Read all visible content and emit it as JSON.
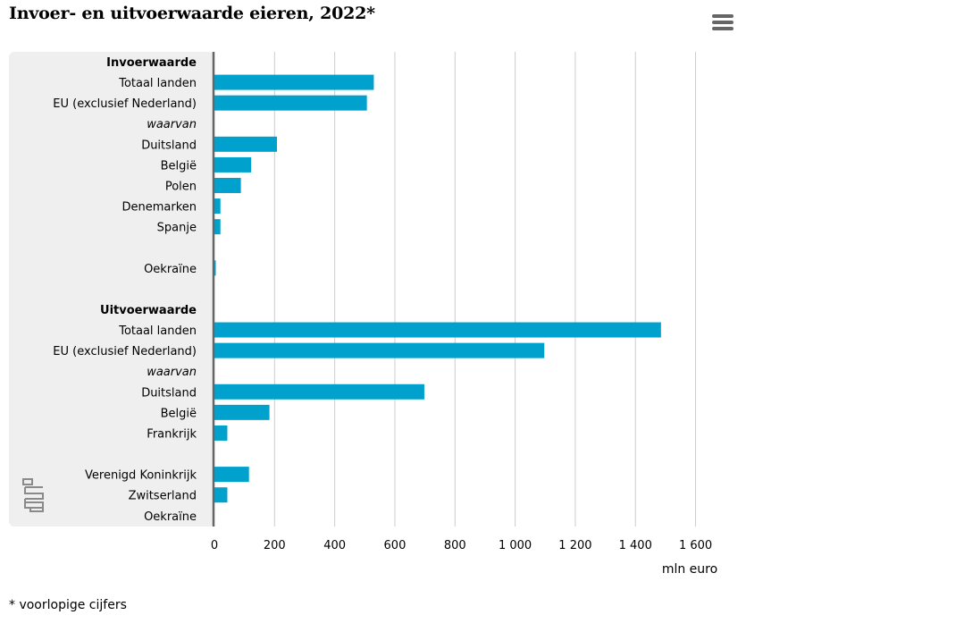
{
  "title": "Invoer- en uitvoerwaarde eieren, 2022*",
  "footnote": "* voorlopige cijfers",
  "menu_icon": "hamburger-menu-icon",
  "logo_icon": "cbs-logo-icon",
  "colors": {
    "bar": "#00a1cd",
    "label_background": "#efefef",
    "grid": "#cccccc",
    "axis": "#666666"
  },
  "chart_data": {
    "type": "bar",
    "orientation": "horizontal",
    "xlabel": "mln euro",
    "xlim": [
      0,
      1600
    ],
    "xticks": [
      0,
      200,
      400,
      600,
      800,
      1000,
      1200,
      1400,
      1600
    ],
    "xtick_labels": [
      "0",
      "200",
      "400",
      "600",
      "800",
      "1 000",
      "1 200",
      "1 400",
      "1 600"
    ],
    "grid": true,
    "categories": [
      {
        "label": "Invoerwaarde",
        "style": "bold",
        "value": null
      },
      {
        "label": "Totaal landen",
        "style": "normal",
        "value": 530
      },
      {
        "label": "EU (exclusief Nederland)",
        "style": "normal",
        "value": 507
      },
      {
        "label": "waarvan",
        "style": "italic",
        "value": null
      },
      {
        "label": "Duitsland",
        "style": "normal",
        "value": 208
      },
      {
        "label": "België",
        "style": "normal",
        "value": 122
      },
      {
        "label": "Polen",
        "style": "normal",
        "value": 88
      },
      {
        "label": "Denemarken",
        "style": "normal",
        "value": 20
      },
      {
        "label": "Spanje",
        "style": "normal",
        "value": 20
      },
      {
        "label": "",
        "style": "normal",
        "value": null
      },
      {
        "label": "Oekraïne",
        "style": "normal",
        "value": 3
      },
      {
        "label": "",
        "style": "normal",
        "value": null
      },
      {
        "label": "Uitvoerwaarde",
        "style": "bold",
        "value": null
      },
      {
        "label": "Totaal landen",
        "style": "normal",
        "value": 1485
      },
      {
        "label": "EU (exclusief Nederland)",
        "style": "normal",
        "value": 1097
      },
      {
        "label": "waarvan",
        "style": "italic",
        "value": null
      },
      {
        "label": "Duitsland",
        "style": "normal",
        "value": 698
      },
      {
        "label": "België",
        "style": "normal",
        "value": 183
      },
      {
        "label": "Frankrijk",
        "style": "normal",
        "value": 43
      },
      {
        "label": "",
        "style": "normal",
        "value": null
      },
      {
        "label": "Verenigd Koninkrijk",
        "style": "normal",
        "value": 115
      },
      {
        "label": "Zwitserland",
        "style": "normal",
        "value": 43
      },
      {
        "label": "Oekraïne",
        "style": "normal",
        "value": 0
      }
    ]
  }
}
